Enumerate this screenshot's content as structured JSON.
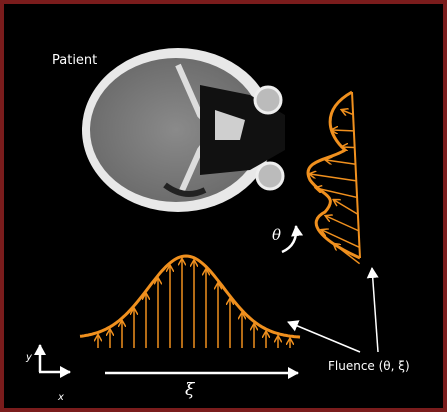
{
  "labels": {
    "patient": "Patient",
    "theta": "θ",
    "xi": "ξ",
    "fluence": "Fluence (θ, ξ)",
    "axis_y": "y",
    "axis_x": "x"
  }
}
